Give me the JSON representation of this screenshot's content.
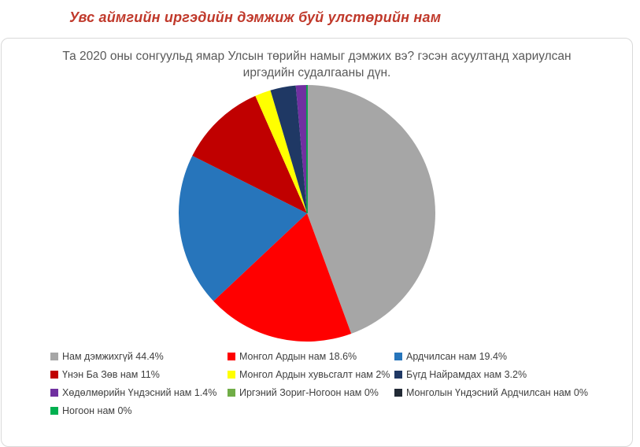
{
  "page": {
    "title": "Увс аймгийн иргэдийн дэмжиж буй улстөрийн нам"
  },
  "colors": {
    "page_title": "#C0392B",
    "chart_title_text": "#595959",
    "legend_text": "#404040",
    "card_border": "#D9D9D9",
    "card_background": "#FFFFFF"
  },
  "chart_data": {
    "type": "pie",
    "title": "Та 2020 оны сонгуульд ямар Улсын төрийн намыг дэмжих вэ? гэсэн асуултанд хариулсан иргэдийн судалгааны дүн.",
    "legend_position": "bottom",
    "legend_columns": 3,
    "start_angle_deg": 0,
    "direction": "clockwise",
    "units": "%",
    "slices": [
      {
        "label": "Нам дэмжихгүй",
        "value": 44.4,
        "color": "#A6A6A6",
        "legend_text": "Нам дэмжихгүй 44.4%"
      },
      {
        "label": "Монгол Ардын нам",
        "value": 18.6,
        "color": "#FF0000",
        "legend_text": "Монгол Ардын нам 18.6%"
      },
      {
        "label": "Ардчилсан нам",
        "value": 19.4,
        "color": "#2775BB",
        "legend_text": "Ардчилсан нам 19.4%"
      },
      {
        "label": "Үнэн Ба Зөв нам",
        "value": 11,
        "color": "#C00000",
        "legend_text": "Үнэн Ба Зөв нам 11%"
      },
      {
        "label": "Монгол Ардын хувьсгалт нам",
        "value": 2,
        "color": "#FFFF00",
        "legend_text": "Монгол Ардын хувьсгалт нам 2%"
      },
      {
        "label": "Бүгд Найрамдах нам",
        "value": 3.2,
        "color": "#1F3864",
        "legend_text": "Бүгд Найрамдах нам 3.2%"
      },
      {
        "label": "Хөдөлмөрийн Үндэсний нам",
        "value": 1.4,
        "color": "#7030A0",
        "legend_text": "Хөдөлмөрийн Үндэсний нам 1.4%"
      },
      {
        "label": "Иргэний Зориг-Ногоон нам",
        "value": 0,
        "color": "#70AD47",
        "legend_text": "Иргэний Зориг-Ногоон нам 0%"
      },
      {
        "label": "Монголын Үндэсний Ардчилсан нам",
        "value": 0,
        "color": "#222A35",
        "legend_text": "Монголын Үндэсний Ардчилсан нам 0%"
      },
      {
        "label": "Ногоон нам",
        "value": 0,
        "color": "#00B050",
        "legend_text": "Ногоон нам 0%"
      }
    ]
  }
}
